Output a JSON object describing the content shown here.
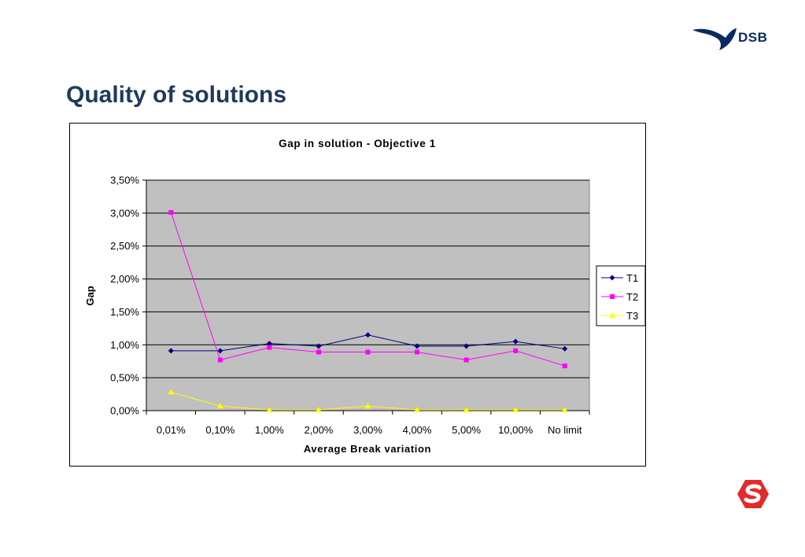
{
  "slide": {
    "title": "Quality of solutions",
    "brand_text": "DSB"
  },
  "colors": {
    "title": "#1f3a5a",
    "brand": "#0a2a5e",
    "logo_red": "#e32b2b",
    "plot_bg": "#c0c0c0",
    "T1": "#000080",
    "T2": "#ff00ff",
    "T3": "#ffff00"
  },
  "icons": {
    "brand_logo": "dsb-bird-icon",
    "footer_logo": "s-train-logo-icon"
  },
  "chart_data": {
    "type": "line",
    "title": "Gap in solution - Objective 1",
    "xlabel": "Average Break variation",
    "ylabel": "Gap",
    "categories": [
      "0,01%",
      "0,10%",
      "1,00%",
      "2,00%",
      "3,00%",
      "4,00%",
      "5,00%",
      "10,00%",
      "No limit"
    ],
    "ylim": [
      0,
      0.035
    ],
    "yticks": [
      0,
      0.005,
      0.01,
      0.015,
      0.02,
      0.025,
      0.03,
      0.035
    ],
    "ytick_labels": [
      "0,00%",
      "0,50%",
      "1,00%",
      "1,50%",
      "2,00%",
      "2,50%",
      "3,00%",
      "3,50%"
    ],
    "grid": true,
    "legend": "right",
    "series": [
      {
        "name": "T1",
        "marker": "diamond",
        "values": [
          0.0091,
          0.0091,
          0.0102,
          0.0098,
          0.0115,
          0.0098,
          0.0098,
          0.0105,
          0.0094
        ]
      },
      {
        "name": "T2",
        "marker": "square",
        "values": [
          0.0301,
          0.0077,
          0.0096,
          0.0089,
          0.0089,
          0.0089,
          0.0077,
          0.0091,
          0.0068
        ]
      },
      {
        "name": "T3",
        "marker": "triangle",
        "values": [
          0.0028,
          0.0007,
          0.0001,
          0.0001,
          0.0007,
          0.0001,
          0.0001,
          0.0001,
          0.0001
        ]
      }
    ]
  }
}
